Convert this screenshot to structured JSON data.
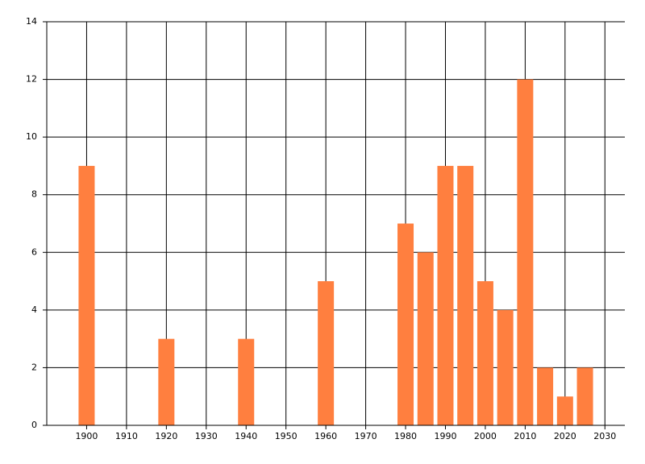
{
  "chart_data": {
    "type": "bar",
    "x": [
      1900,
      1920,
      1940,
      1960,
      1980,
      1985,
      1990,
      1995,
      2000,
      2005,
      2010,
      2015,
      2020,
      2025
    ],
    "values": [
      9,
      3,
      3,
      5,
      7,
      6,
      9,
      9,
      5,
      4,
      12,
      2,
      1,
      2
    ],
    "color": "#ff7f3f",
    "xlim": [
      1890,
      2035
    ],
    "xticks": [
      1900,
      1910,
      1920,
      1930,
      1940,
      1950,
      1960,
      1970,
      1980,
      1990,
      2000,
      2010,
      2020,
      2030
    ],
    "ylim": [
      0,
      14
    ],
    "yticks": [
      0,
      2,
      4,
      6,
      8,
      10,
      12,
      14
    ],
    "grid": true
  }
}
